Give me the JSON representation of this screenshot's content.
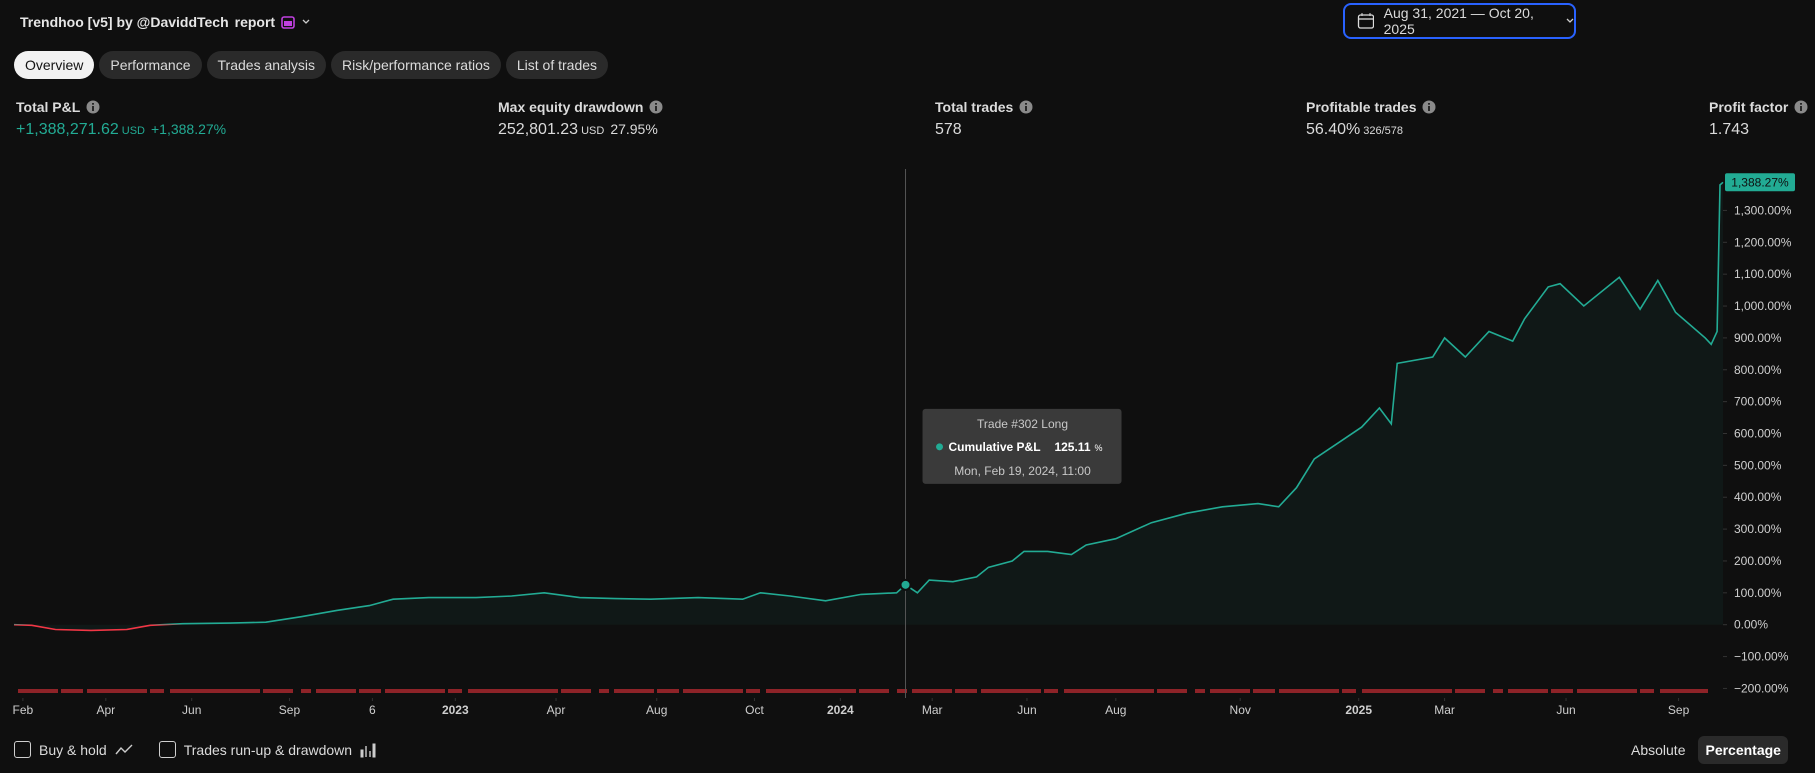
{
  "header": {
    "title": "Trendhoo [v5] by @DaviddTech",
    "report": "report",
    "date_range": "Aug 31, 2021 — Oct 20, 2025"
  },
  "tabs": [
    "Overview",
    "Performance",
    "Trades analysis",
    "Risk/performance ratios",
    "List of trades"
  ],
  "metrics": [
    {
      "label": "Total P&L",
      "value": "+1,388,271.62",
      "unit": "USD",
      "extra": "+1,388.27%",
      "color": "#22ab94"
    },
    {
      "label": "Max equity drawdown",
      "value": "252,801.23",
      "unit": "USD",
      "extra": "27.95%"
    },
    {
      "label": "Total trades",
      "value": "578"
    },
    {
      "label": "Profitable trades",
      "value": "56.40%",
      "extra": "326/578"
    },
    {
      "label": "Profit factor",
      "value": "1.743"
    }
  ],
  "chart_data": {
    "type": "line",
    "x": [
      1,
      7,
      15,
      27,
      39,
      47,
      58,
      74,
      86,
      98,
      110,
      121,
      129,
      141,
      157,
      169,
      180,
      192,
      204,
      216,
      232,
      247,
      253,
      263,
      275,
      287,
      299,
      302,
      306,
      310,
      318,
      326,
      330,
      338,
      342,
      350,
      358,
      363,
      373,
      385,
      397,
      409,
      421,
      428,
      434,
      440,
      448,
      456,
      462,
      466,
      468,
      480,
      484,
      491,
      499,
      507,
      511,
      519,
      523,
      531,
      543,
      550,
      556,
      562,
      572,
      574,
      576,
      577,
      578
    ],
    "series": [
      {
        "name": "Cumulative P&L",
        "color": "#22ab94",
        "negative_color": "#f23645",
        "values": [
          0,
          -2,
          -15,
          -18,
          -15,
          -2,
          3,
          5,
          8,
          25,
          45,
          60,
          80,
          85,
          85,
          90,
          100,
          85,
          82,
          80,
          85,
          80,
          100,
          90,
          75,
          95,
          100,
          125.11,
          100,
          140,
          135,
          150,
          180,
          200,
          230,
          230,
          220,
          250,
          270,
          320,
          350,
          370,
          380,
          370,
          430,
          520,
          570,
          620,
          680,
          630,
          820,
          840,
          900,
          840,
          920,
          890,
          960,
          1060,
          1070,
          1000,
          1090,
          990,
          1080,
          980,
          900,
          880,
          920,
          1380,
          1388.27
        ]
      }
    ],
    "last_label": {
      "value": 1388.27,
      "label": "1,388.27%"
    },
    "xlim": [
      1,
      578
    ],
    "xticks": [
      {
        "value": 4,
        "label": "Feb"
      },
      {
        "value": 32,
        "label": "Apr"
      },
      {
        "value": 61,
        "label": "Jun"
      },
      {
        "value": 94,
        "label": "Sep"
      },
      {
        "value": 122,
        "label": "6"
      },
      {
        "value": 150,
        "label": "2023"
      },
      {
        "value": 184,
        "label": "Apr"
      },
      {
        "value": 218,
        "label": "Aug"
      },
      {
        "value": 251,
        "label": "Oct"
      },
      {
        "value": 280,
        "label": "2024"
      },
      {
        "value": 311,
        "label": "Mar"
      },
      {
        "value": 343,
        "label": "Jun"
      },
      {
        "value": 373,
        "label": "Aug"
      },
      {
        "value": 415,
        "label": "Nov"
      },
      {
        "value": 455,
        "label": "2025"
      },
      {
        "value": 484,
        "label": "Mar"
      },
      {
        "value": 525,
        "label": "Jun"
      },
      {
        "value": 563,
        "label": "Sep"
      }
    ],
    "ylim": [
      -230,
      1430
    ],
    "yticks": [
      {
        "value": -200,
        "label": "−200.00%"
      },
      {
        "value": -100,
        "label": "−100.00%"
      },
      {
        "value": 0,
        "label": "0.00%"
      },
      {
        "value": 100,
        "label": "100.00%"
      },
      {
        "value": 200,
        "label": "200.00%"
      },
      {
        "value": 300,
        "label": "300.00%"
      },
      {
        "value": 400,
        "label": "400.00%"
      },
      {
        "value": 500,
        "label": "500.00%"
      },
      {
        "value": 600,
        "label": "600.00%"
      },
      {
        "value": 700,
        "label": "700.00%"
      },
      {
        "value": 800,
        "label": "800.00%"
      },
      {
        "value": 900,
        "label": "900.00%"
      },
      {
        "value": 1000,
        "label": "1,000.00%"
      },
      {
        "value": 1100,
        "label": "1,100.00%"
      },
      {
        "value": 1200,
        "label": "1,200.00%"
      },
      {
        "value": 1300,
        "label": "1,300.00%"
      }
    ],
    "tooltip": {
      "title": "Trade #302 Long",
      "label": "Cumulative P&L",
      "value": 125.11,
      "unit": "%",
      "date": "Mon, Feb 19, 2024, 11:00",
      "index": 27
    }
  },
  "footer": {
    "checkboxes": [
      "Buy & hold",
      "Trades run-up & drawdown"
    ],
    "toggle": [
      "Absolute",
      "Percentage"
    ]
  }
}
